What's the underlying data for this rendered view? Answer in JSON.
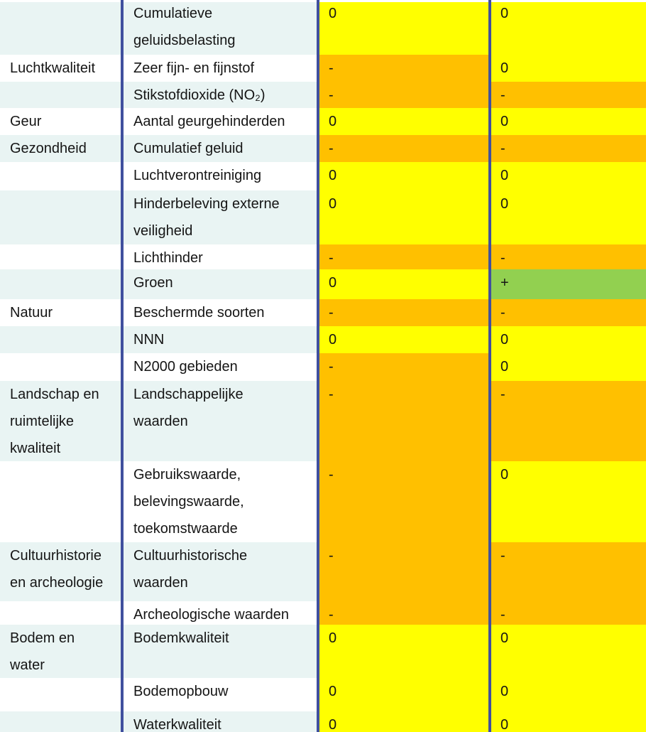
{
  "table": {
    "description": "Effectbeoordeling tabel (milieueffecten per thema en aspect, twee alternatieven)",
    "colors": {
      "row_stripe": "#e9f4f3",
      "grid_line": "#40509e",
      "text": "#151515",
      "score": {
        "0": "#ffff00",
        "-": "#ffc000",
        "+": "#92d050"
      }
    },
    "rows": [
      {
        "theme": "",
        "aspect": "Cumulatieve\ngeluidsbelasting",
        "score1": "0",
        "score2": "0"
      },
      {
        "theme": "Luchtkwaliteit",
        "aspect": "Zeer fijn- en fijnstof",
        "score1": "-",
        "score2": "0"
      },
      {
        "theme": "",
        "aspect": "Stikstofdioxide (NO₂)",
        "score1": "-",
        "score2": "-"
      },
      {
        "theme": "Geur",
        "aspect": "Aantal geurgehinderden",
        "score1": "0",
        "score2": "0"
      },
      {
        "theme": "Gezondheid",
        "aspect": "Cumulatief geluid",
        "score1": "-",
        "score2": "-"
      },
      {
        "theme": "",
        "aspect": "Luchtverontreiniging",
        "score1": "0",
        "score2": "0"
      },
      {
        "theme": "",
        "aspect": "Hinderbeleving externe\nveiligheid",
        "score1": "0",
        "score2": "0"
      },
      {
        "theme": "",
        "aspect": "Lichthinder",
        "score1": "-",
        "score2": "-"
      },
      {
        "theme": "",
        "aspect": "Groen",
        "score1": "0",
        "score2": "+"
      },
      {
        "theme": "Natuur",
        "aspect": "Beschermde soorten",
        "score1": "-",
        "score2": "-"
      },
      {
        "theme": "",
        "aspect": "NNN",
        "score1": "0",
        "score2": "0"
      },
      {
        "theme": "",
        "aspect": "N2000 gebieden",
        "score1": "-",
        "score2": "0"
      },
      {
        "theme": "Landschap en\nruimtelijke\nkwaliteit",
        "aspect": "Landschappelijke\nwaarden",
        "score1": "-",
        "score2": "-"
      },
      {
        "theme": "",
        "aspect": "Gebruikswaarde,\nbelevingswaarde,\ntoekomstwaarde",
        "score1": "-",
        "score2": "0"
      },
      {
        "theme": "Cultuurhistorie\nen archeologie",
        "aspect": "Cultuurhistorische\nwaarden",
        "score1": "-",
        "score2": "-"
      },
      {
        "theme": "",
        "aspect": "Archeologische waarden",
        "score1": "-",
        "score2": "-"
      },
      {
        "theme": "Bodem en\nwater",
        "aspect": "Bodemkwaliteit",
        "score1": "0",
        "score2": "0"
      },
      {
        "theme": "",
        "aspect": "Bodemopbouw",
        "score1": "0",
        "score2": "0"
      },
      {
        "theme": "",
        "aspect": "Waterkwaliteit",
        "score1": "0",
        "score2": "0"
      }
    ]
  }
}
